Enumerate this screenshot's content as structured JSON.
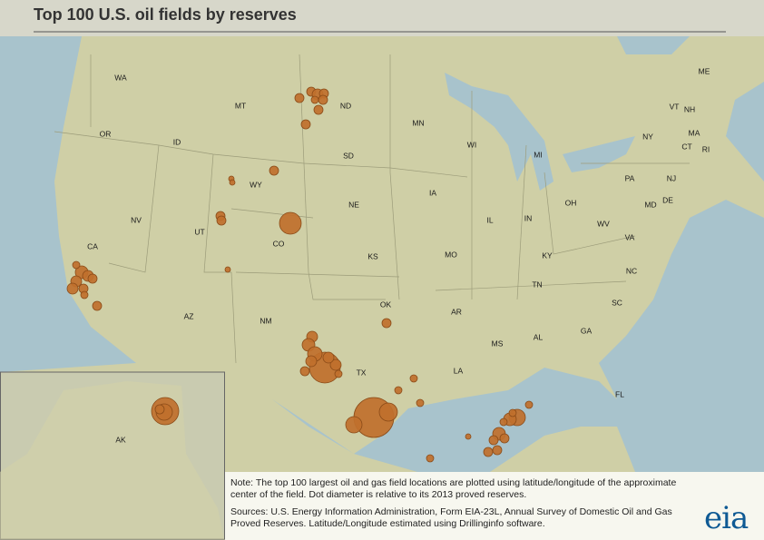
{
  "header": {
    "title": "Top 100 U.S. oil fields by reserves"
  },
  "states": [
    "WA",
    "MT",
    "ND",
    "MN",
    "OR",
    "ID",
    "SD",
    "WI",
    "MI",
    "ME",
    "VT",
    "NH",
    "NY",
    "MA",
    "CT",
    "RI",
    "WY",
    "NE",
    "IA",
    "PA",
    "NJ",
    "OH",
    "DE",
    "MD",
    "NV",
    "UT",
    "CO",
    "IL",
    "IN",
    "WV",
    "VA",
    "CA",
    "KS",
    "MO",
    "KY",
    "NC",
    "TN",
    "SC",
    "OK",
    "AR",
    "AZ",
    "NM",
    "GA",
    "AL",
    "MS",
    "TX",
    "LA",
    "FL",
    "AK"
  ],
  "note": "Note: The top 100 largest oil and gas field locations are plotted using latitude/longitude of the approximate center of the field.  Dot diameter is relative to its 2013 proved reserves.",
  "sources": "Sources: U.S. Energy Information Administration, Form EIA-23L, Annual Survey of Domestic Oil and Gas Proved Reserves. Latitude/Longitude estimated using Drillinginfo software.",
  "logo": "eia"
}
